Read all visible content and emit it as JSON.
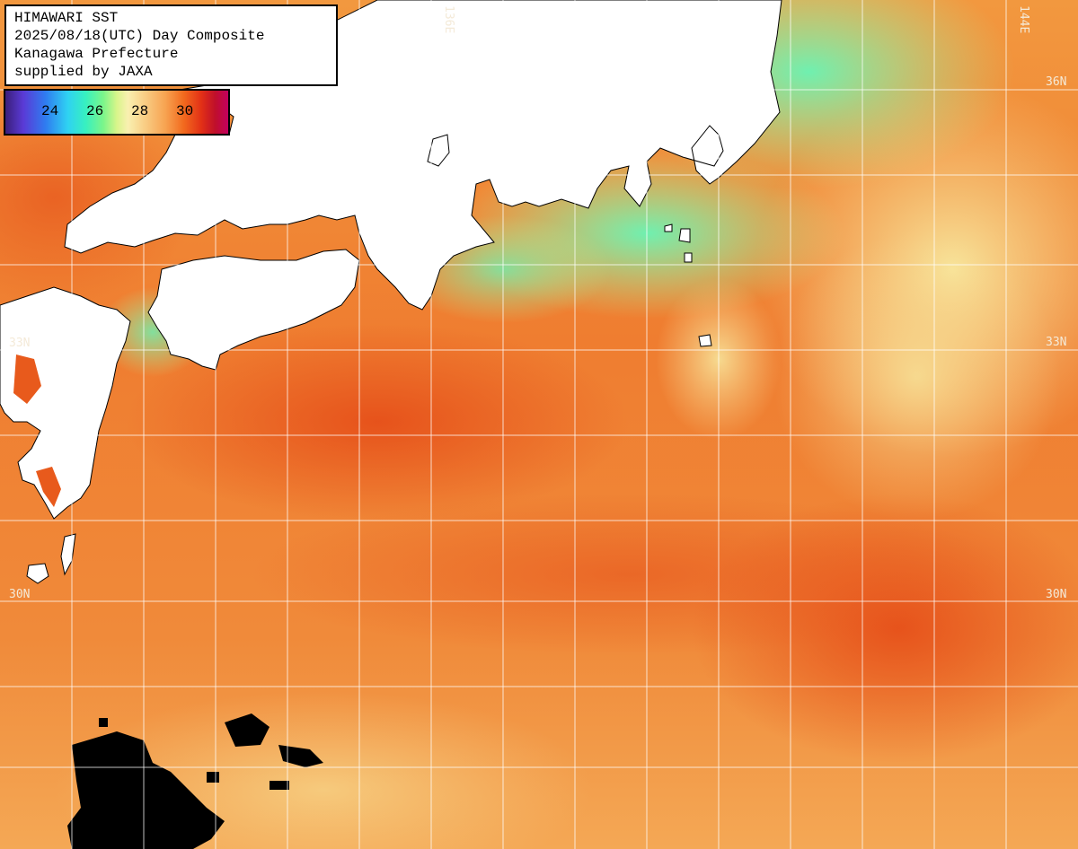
{
  "title_box": {
    "line1": "HIMAWARI SST",
    "line2": "2025/08/18(UTC) Day Composite",
    "line3": "Kanagawa Prefecture",
    "line4": "supplied by JAXA"
  },
  "legend": {
    "ticks": [
      "24",
      "26",
      "28",
      "30"
    ],
    "colors": [
      "#3b1f7a",
      "#2f7cf0",
      "#2fd2f2",
      "#7cf58a",
      "#f9f0b0",
      "#f7a250",
      "#e23016",
      "#c2005e"
    ]
  },
  "grid_labels": {
    "lon_136": "136E",
    "lon_144": "144E",
    "lat_36_right": "36N",
    "lat_33_left": "33N",
    "lat_33_right": "33N",
    "lat_30_left": "30N",
    "lat_30_right": "30N"
  },
  "colors": {
    "land": "#ffffff",
    "ocean_warm": "#f08a3a",
    "ocean_hot": "#e8591c",
    "coastal_cool": "#7df0a8",
    "cloud_mask": "#000000",
    "grid": "#ffffff"
  }
}
